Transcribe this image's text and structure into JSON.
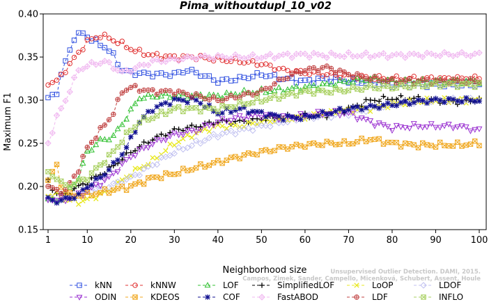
{
  "chart_data": {
    "type": "line",
    "title": "Pima_withoutdupl_10_v02",
    "xlabel": "Neighborhood size",
    "ylabel": "Maximum F1",
    "xlim": [
      1,
      100
    ],
    "ylim": [
      0.15,
      0.4
    ],
    "x_ticks": [
      1,
      10,
      20,
      30,
      40,
      50,
      60,
      70,
      80,
      90,
      100
    ],
    "y_ticks": [
      "0.15",
      "0.20",
      "0.25",
      "0.30",
      "0.35",
      "0.40"
    ],
    "credit": {
      "line1": "Unsupervised Outlier Detection. DAMI, 2015.",
      "line2": "Campos, Zimek, Sander, Campello, Micenková, Schubert, Assent, Houle"
    },
    "series": [
      {
        "name": "kNN",
        "color": "#3050e0",
        "marker": "square",
        "knots": [
          [
            1,
            0.302
          ],
          [
            3,
            0.31
          ],
          [
            5,
            0.345
          ],
          [
            7,
            0.372
          ],
          [
            9,
            0.378
          ],
          [
            11,
            0.37
          ],
          [
            14,
            0.362
          ],
          [
            16,
            0.352
          ],
          [
            18,
            0.335
          ],
          [
            20,
            0.332
          ],
          [
            25,
            0.33
          ],
          [
            30,
            0.33
          ],
          [
            33,
            0.335
          ],
          [
            36,
            0.33
          ],
          [
            40,
            0.322
          ],
          [
            45,
            0.325
          ],
          [
            50,
            0.33
          ],
          [
            55,
            0.325
          ],
          [
            60,
            0.322
          ],
          [
            65,
            0.325
          ],
          [
            70,
            0.322
          ],
          [
            80,
            0.318
          ],
          [
            90,
            0.318
          ],
          [
            100,
            0.318
          ]
        ]
      },
      {
        "name": "kNNW",
        "color": "#e03030",
        "marker": "circle",
        "knots": [
          [
            1,
            0.32
          ],
          [
            3,
            0.322
          ],
          [
            5,
            0.335
          ],
          [
            8,
            0.355
          ],
          [
            10,
            0.368
          ],
          [
            13,
            0.375
          ],
          [
            15,
            0.372
          ],
          [
            18,
            0.365
          ],
          [
            21,
            0.357
          ],
          [
            25,
            0.352
          ],
          [
            30,
            0.35
          ],
          [
            35,
            0.35
          ],
          [
            40,
            0.347
          ],
          [
            45,
            0.345
          ],
          [
            50,
            0.342
          ],
          [
            55,
            0.335
          ],
          [
            60,
            0.332
          ],
          [
            65,
            0.33
          ],
          [
            70,
            0.328
          ],
          [
            75,
            0.326
          ],
          [
            80,
            0.325
          ],
          [
            90,
            0.325
          ],
          [
            100,
            0.325
          ]
        ]
      },
      {
        "name": "LOF",
        "color": "#30c030",
        "marker": "triangle-up",
        "knots": [
          [
            1,
            0.185
          ],
          [
            3,
            0.183
          ],
          [
            5,
            0.19
          ],
          [
            8,
            0.21
          ],
          [
            10,
            0.24
          ],
          [
            13,
            0.253
          ],
          [
            16,
            0.258
          ],
          [
            19,
            0.28
          ],
          [
            22,
            0.303
          ],
          [
            26,
            0.305
          ],
          [
            30,
            0.305
          ],
          [
            35,
            0.305
          ],
          [
            40,
            0.305
          ],
          [
            45,
            0.308
          ],
          [
            50,
            0.31
          ],
          [
            55,
            0.312
          ],
          [
            60,
            0.315
          ],
          [
            65,
            0.318
          ],
          [
            70,
            0.322
          ],
          [
            75,
            0.325
          ],
          [
            80,
            0.322
          ],
          [
            90,
            0.322
          ],
          [
            100,
            0.322
          ]
        ]
      },
      {
        "name": "SimplifiedLOF",
        "color": "#000000",
        "marker": "plus",
        "knots": [
          [
            1,
            0.205
          ],
          [
            3,
            0.192
          ],
          [
            5,
            0.19
          ],
          [
            8,
            0.2
          ],
          [
            10,
            0.205
          ],
          [
            15,
            0.22
          ],
          [
            20,
            0.24
          ],
          [
            25,
            0.255
          ],
          [
            30,
            0.265
          ],
          [
            35,
            0.27
          ],
          [
            40,
            0.275
          ],
          [
            45,
            0.275
          ],
          [
            50,
            0.278
          ],
          [
            55,
            0.28
          ],
          [
            60,
            0.282
          ],
          [
            65,
            0.283
          ],
          [
            70,
            0.29
          ],
          [
            75,
            0.3
          ],
          [
            80,
            0.302
          ],
          [
            85,
            0.302
          ],
          [
            90,
            0.3
          ],
          [
            95,
            0.298
          ],
          [
            100,
            0.3
          ]
        ]
      },
      {
        "name": "LoOP",
        "color": "#e8e820",
        "marker": "x",
        "knots": [
          [
            1,
            0.19
          ],
          [
            3,
            0.19
          ],
          [
            5,
            0.185
          ],
          [
            8,
            0.182
          ],
          [
            10,
            0.185
          ],
          [
            15,
            0.195
          ],
          [
            20,
            0.215
          ],
          [
            25,
            0.23
          ],
          [
            30,
            0.25
          ],
          [
            35,
            0.262
          ],
          [
            40,
            0.27
          ],
          [
            45,
            0.27
          ],
          [
            50,
            0.275
          ],
          [
            55,
            0.278
          ],
          [
            60,
            0.28
          ],
          [
            65,
            0.285
          ],
          [
            70,
            0.288
          ],
          [
            75,
            0.29
          ],
          [
            80,
            0.295
          ],
          [
            85,
            0.298
          ],
          [
            90,
            0.3
          ],
          [
            95,
            0.3
          ],
          [
            100,
            0.3
          ]
        ]
      },
      {
        "name": "LDOF",
        "color": "#c0c0f0",
        "marker": "diamond",
        "knots": [
          [
            1,
            0.185
          ],
          [
            3,
            0.185
          ],
          [
            5,
            0.185
          ],
          [
            8,
            0.19
          ],
          [
            10,
            0.195
          ],
          [
            15,
            0.2
          ],
          [
            20,
            0.21
          ],
          [
            25,
            0.225
          ],
          [
            30,
            0.24
          ],
          [
            35,
            0.25
          ],
          [
            40,
            0.26
          ],
          [
            45,
            0.265
          ],
          [
            50,
            0.27
          ],
          [
            55,
            0.275
          ],
          [
            60,
            0.28
          ],
          [
            65,
            0.282
          ],
          [
            70,
            0.285
          ],
          [
            75,
            0.29
          ],
          [
            80,
            0.295
          ],
          [
            85,
            0.298
          ],
          [
            90,
            0.3
          ],
          [
            95,
            0.3
          ],
          [
            100,
            0.3
          ]
        ]
      },
      {
        "name": "ODIN",
        "color": "#9a30d0",
        "marker": "triangle-down",
        "knots": [
          [
            1,
            0.185
          ],
          [
            3,
            0.185
          ],
          [
            5,
            0.185
          ],
          [
            8,
            0.19
          ],
          [
            10,
            0.195
          ],
          [
            15,
            0.21
          ],
          [
            20,
            0.235
          ],
          [
            25,
            0.25
          ],
          [
            30,
            0.26
          ],
          [
            35,
            0.265
          ],
          [
            40,
            0.275
          ],
          [
            45,
            0.28
          ],
          [
            50,
            0.283
          ],
          [
            55,
            0.28
          ],
          [
            60,
            0.282
          ],
          [
            65,
            0.285
          ],
          [
            70,
            0.285
          ],
          [
            75,
            0.275
          ],
          [
            80,
            0.268
          ],
          [
            85,
            0.27
          ],
          [
            90,
            0.27
          ],
          [
            95,
            0.27
          ],
          [
            100,
            0.265
          ]
        ]
      },
      {
        "name": "KDEOS",
        "color": "#f0a820",
        "marker": "square-x",
        "knots": [
          [
            1,
            0.21
          ],
          [
            2,
            0.215
          ],
          [
            3,
            0.225
          ],
          [
            4,
            0.2
          ],
          [
            6,
            0.19
          ],
          [
            10,
            0.19
          ],
          [
            15,
            0.195
          ],
          [
            20,
            0.2
          ],
          [
            25,
            0.21
          ],
          [
            30,
            0.215
          ],
          [
            35,
            0.222
          ],
          [
            40,
            0.228
          ],
          [
            45,
            0.235
          ],
          [
            50,
            0.24
          ],
          [
            55,
            0.245
          ],
          [
            60,
            0.248
          ],
          [
            65,
            0.25
          ],
          [
            70,
            0.25
          ],
          [
            75,
            0.255
          ],
          [
            80,
            0.25
          ],
          [
            85,
            0.248
          ],
          [
            90,
            0.248
          ],
          [
            95,
            0.248
          ],
          [
            100,
            0.25
          ]
        ]
      },
      {
        "name": "COF",
        "color": "#101090",
        "marker": "star",
        "knots": [
          [
            1,
            0.185
          ],
          [
            3,
            0.183
          ],
          [
            5,
            0.185
          ],
          [
            8,
            0.19
          ],
          [
            10,
            0.2
          ],
          [
            13,
            0.21
          ],
          [
            16,
            0.225
          ],
          [
            19,
            0.245
          ],
          [
            22,
            0.275
          ],
          [
            25,
            0.29
          ],
          [
            30,
            0.3
          ],
          [
            35,
            0.3
          ],
          [
            40,
            0.285
          ],
          [
            45,
            0.29
          ],
          [
            50,
            0.285
          ],
          [
            55,
            0.28
          ],
          [
            60,
            0.28
          ],
          [
            65,
            0.285
          ],
          [
            70,
            0.29
          ],
          [
            75,
            0.292
          ],
          [
            80,
            0.295
          ],
          [
            85,
            0.298
          ],
          [
            90,
            0.3
          ],
          [
            95,
            0.3
          ],
          [
            100,
            0.3
          ]
        ]
      },
      {
        "name": "FastABOD",
        "color": "#f0b8f0",
        "marker": "diamond-dot",
        "knots": [
          [
            1,
            0.25
          ],
          [
            3,
            0.28
          ],
          [
            5,
            0.3
          ],
          [
            8,
            0.335
          ],
          [
            10,
            0.34
          ],
          [
            14,
            0.345
          ],
          [
            18,
            0.332
          ],
          [
            20,
            0.335
          ],
          [
            25,
            0.345
          ],
          [
            30,
            0.347
          ],
          [
            35,
            0.35
          ],
          [
            40,
            0.35
          ],
          [
            45,
            0.35
          ],
          [
            50,
            0.35
          ],
          [
            55,
            0.352
          ],
          [
            60,
            0.353
          ],
          [
            65,
            0.352
          ],
          [
            70,
            0.352
          ],
          [
            75,
            0.352
          ],
          [
            80,
            0.352
          ],
          [
            90,
            0.353
          ],
          [
            100,
            0.353
          ]
        ]
      },
      {
        "name": "LDF",
        "color": "#c04040",
        "marker": "circle-plus",
        "knots": [
          [
            1,
            0.2
          ],
          [
            3,
            0.195
          ],
          [
            5,
            0.195
          ],
          [
            8,
            0.22
          ],
          [
            10,
            0.245
          ],
          [
            13,
            0.265
          ],
          [
            16,
            0.285
          ],
          [
            18,
            0.31
          ],
          [
            20,
            0.315
          ],
          [
            25,
            0.31
          ],
          [
            30,
            0.31
          ],
          [
            35,
            0.305
          ],
          [
            40,
            0.3
          ],
          [
            45,
            0.305
          ],
          [
            50,
            0.31
          ],
          [
            55,
            0.325
          ],
          [
            60,
            0.335
          ],
          [
            65,
            0.338
          ],
          [
            70,
            0.33
          ],
          [
            75,
            0.325
          ],
          [
            80,
            0.322
          ],
          [
            90,
            0.322
          ],
          [
            100,
            0.322
          ]
        ]
      },
      {
        "name": "INFLO",
        "color": "#a8d060",
        "marker": "square-x",
        "knots": [
          [
            1,
            0.215
          ],
          [
            3,
            0.21
          ],
          [
            5,
            0.2
          ],
          [
            8,
            0.205
          ],
          [
            10,
            0.21
          ],
          [
            13,
            0.225
          ],
          [
            16,
            0.24
          ],
          [
            19,
            0.26
          ],
          [
            22,
            0.275
          ],
          [
            25,
            0.28
          ],
          [
            30,
            0.29
          ],
          [
            35,
            0.29
          ],
          [
            40,
            0.29
          ],
          [
            45,
            0.295
          ],
          [
            50,
            0.3
          ],
          [
            55,
            0.305
          ],
          [
            60,
            0.31
          ],
          [
            65,
            0.31
          ],
          [
            70,
            0.312
          ],
          [
            75,
            0.315
          ],
          [
            80,
            0.315
          ],
          [
            90,
            0.318
          ],
          [
            100,
            0.318
          ]
        ]
      }
    ],
    "legend": {
      "placement": "bottom",
      "rows": [
        [
          "kNN",
          "kNNW",
          "LOF",
          "SimplifiedLOF",
          "LoOP",
          "LDOF"
        ],
        [
          "ODIN",
          "KDEOS",
          "COF",
          "FastABOD",
          "LDF",
          "INFLO"
        ]
      ]
    },
    "grid": false
  }
}
